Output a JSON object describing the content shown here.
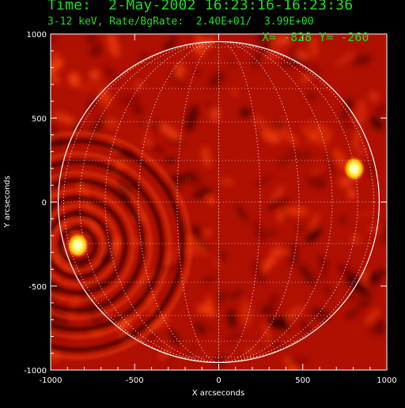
{
  "header": {
    "time_label": "Time:",
    "date": "2-May-2002",
    "time_range": "16:23:16-16:23:36",
    "energy_band": "3-12 keV,",
    "rate_label": "Rate/BgRate:",
    "rate": "2.40E+01/",
    "bg_rate": "3.99E+00"
  },
  "cursor": {
    "x_label": "X=",
    "x_value": "-828",
    "y_label": "Y=",
    "y_value": "-260"
  },
  "axes": {
    "x_label": "X arcseconds",
    "y_label": "Y arcseconds",
    "x_ticks": [
      "-1000",
      "-500",
      "0",
      "500",
      "1000"
    ],
    "y_ticks": [
      "1000",
      "500",
      "0",
      "-500",
      "-1000"
    ],
    "range_arcsec": [
      -1000,
      1000
    ]
  },
  "map": {
    "solar_radius_arcsec": 955,
    "grid": true,
    "grid_spacing_deg": 15,
    "colors": {
      "background": "#000000",
      "text": "#22dd22",
      "limb": "#ffffff",
      "map_base": "#b01000"
    },
    "sources": [
      {
        "x_arcsec": -838,
        "y_arcsec": -258,
        "level": 1.0
      },
      {
        "x_arcsec": 806,
        "y_arcsec": 198,
        "level": 0.92
      }
    ]
  }
}
